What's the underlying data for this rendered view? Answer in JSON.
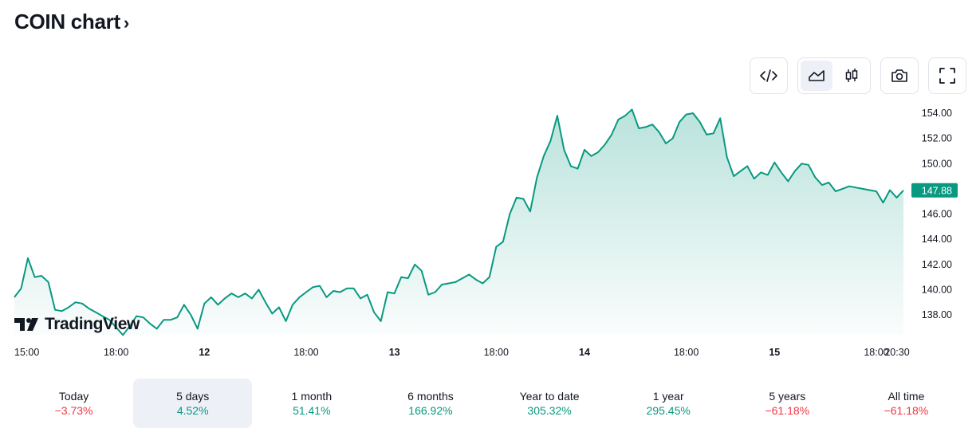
{
  "header": {
    "title": "COIN chart",
    "chevron": "›"
  },
  "toolbar": {
    "embed_icon": "code-icon",
    "area_icon": "area-chart-icon",
    "candles_icon": "candlestick-icon",
    "snapshot_icon": "camera-icon",
    "fullscreen_icon": "fullscreen-icon",
    "active_style": "area"
  },
  "branding": {
    "logo_text": "TradingView"
  },
  "colors": {
    "line": "#089981",
    "fill_top": "#089981",
    "up": "#089981",
    "down": "#f23645",
    "active_bg": "#eef0f7"
  },
  "chart_data": {
    "type": "area",
    "ylim": [
      136.5,
      155.2
    ],
    "y_ticks": [
      "154.00",
      "152.00",
      "150.00",
      "148.00",
      "146.00",
      "144.00",
      "142.00",
      "140.00",
      "138.00"
    ],
    "y_tick_values": [
      154,
      152,
      150,
      148,
      146,
      144,
      142,
      140,
      138
    ],
    "x_ticks": [
      {
        "label": "15:00",
        "index": 2,
        "bold": false
      },
      {
        "label": "18:00",
        "index": 15,
        "bold": false
      },
      {
        "label": "12",
        "index": 28,
        "bold": true
      },
      {
        "label": "18:00",
        "index": 43,
        "bold": false
      },
      {
        "label": "13",
        "index": 56,
        "bold": true
      },
      {
        "label": "18:00",
        "index": 71,
        "bold": false
      },
      {
        "label": "14",
        "index": 84,
        "bold": true
      },
      {
        "label": "18:00",
        "index": 99,
        "bold": false
      },
      {
        "label": "15",
        "index": 112,
        "bold": true
      },
      {
        "label": "18:00",
        "index": 127,
        "bold": false
      },
      {
        "label": "20:30",
        "index": 136,
        "bold": false
      }
    ],
    "last_price": "147.88",
    "last_value": 147.88,
    "values": [
      139.4,
      140.1,
      142.5,
      141.0,
      141.1,
      140.6,
      138.4,
      138.3,
      138.6,
      139.0,
      138.9,
      138.5,
      138.2,
      137.9,
      137.6,
      137.0,
      136.4,
      137.1,
      137.9,
      137.8,
      137.3,
      136.9,
      137.6,
      137.6,
      137.8,
      138.8,
      138.0,
      136.9,
      138.9,
      139.4,
      138.8,
      139.3,
      139.7,
      139.4,
      139.7,
      139.3,
      140.0,
      139.0,
      138.1,
      138.6,
      137.5,
      138.8,
      139.4,
      139.8,
      140.2,
      140.3,
      139.4,
      139.9,
      139.8,
      140.1,
      140.1,
      139.3,
      139.6,
      138.2,
      137.5,
      139.8,
      139.7,
      141.0,
      140.9,
      142.0,
      141.5,
      139.6,
      139.8,
      140.4,
      140.5,
      140.6,
      140.9,
      141.2,
      140.8,
      140.5,
      141.0,
      143.4,
      143.8,
      146.0,
      147.3,
      147.2,
      146.2,
      148.9,
      150.6,
      151.8,
      153.8,
      151.1,
      149.8,
      149.6,
      151.1,
      150.6,
      150.9,
      151.5,
      152.3,
      153.5,
      153.8,
      154.3,
      152.8,
      152.9,
      153.1,
      152.5,
      151.6,
      152.0,
      153.3,
      153.9,
      154.0,
      153.3,
      152.3,
      152.4,
      153.6,
      150.5,
      149.0,
      149.4,
      149.8,
      148.8,
      149.3,
      149.1,
      150.1,
      149.3,
      148.6,
      149.4,
      150.0,
      149.9,
      148.9,
      148.3,
      148.5,
      147.8,
      148.0,
      148.2,
      148.1,
      148.0,
      147.9,
      147.8,
      146.9,
      147.9,
      147.3,
      147.88
    ]
  },
  "periods": [
    {
      "label": "Today",
      "change": "−3.73%",
      "direction": "down",
      "active": false
    },
    {
      "label": "5 days",
      "change": "4.52%",
      "direction": "up",
      "active": true
    },
    {
      "label": "1 month",
      "change": "51.41%",
      "direction": "up",
      "active": false
    },
    {
      "label": "6 months",
      "change": "166.92%",
      "direction": "up",
      "active": false
    },
    {
      "label": "Year to date",
      "change": "305.32%",
      "direction": "up",
      "active": false
    },
    {
      "label": "1 year",
      "change": "295.45%",
      "direction": "up",
      "active": false
    },
    {
      "label": "5 years",
      "change": "−61.18%",
      "direction": "down",
      "active": false
    },
    {
      "label": "All time",
      "change": "−61.18%",
      "direction": "down",
      "active": false
    }
  ]
}
